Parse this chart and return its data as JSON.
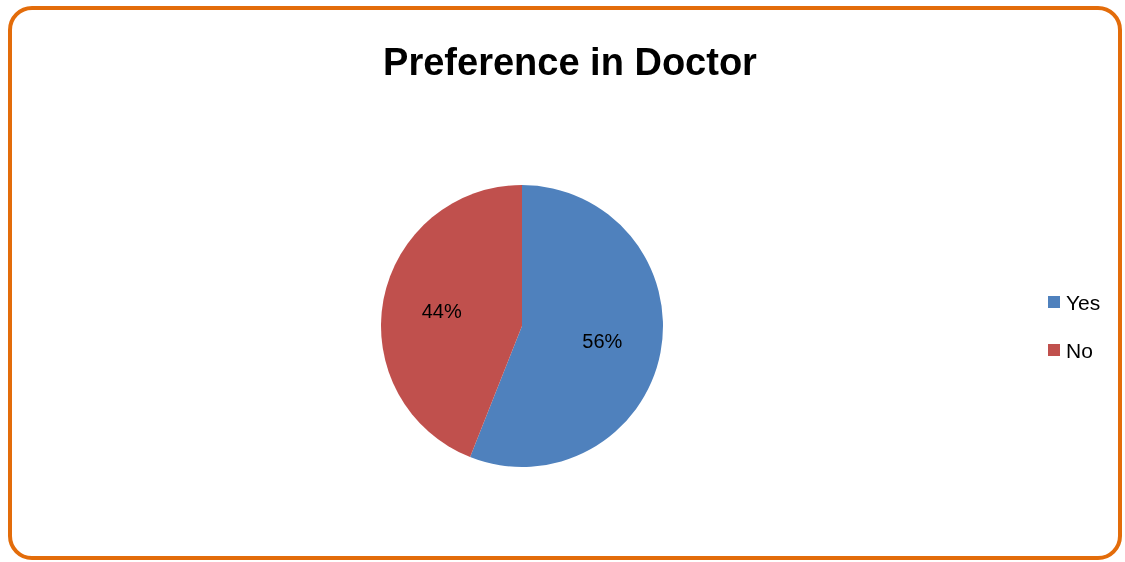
{
  "chart_data": {
    "type": "pie",
    "title": "Preference in Doctor",
    "categories": [
      "Yes",
      "No"
    ],
    "values": [
      56,
      44
    ],
    "colors": [
      "#4f81bd",
      "#c0504d"
    ],
    "value_labels": [
      "56%",
      "44%"
    ],
    "data_labels": true,
    "legend": "right"
  }
}
